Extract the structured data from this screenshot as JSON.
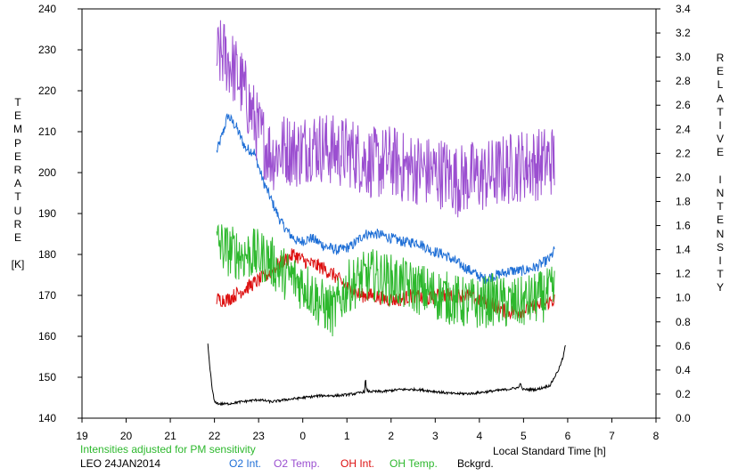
{
  "chart_data": {
    "type": "line",
    "title": "",
    "xlabel": "Local Standard Time [h]",
    "ylabel_left": [
      "T",
      "E",
      "M",
      "P",
      "E",
      "R",
      "A",
      "T",
      "U",
      "R",
      "E",
      "",
      "[K]"
    ],
    "ylabel_right": [
      "R",
      "E",
      "L",
      "A",
      "T",
      "I",
      "V",
      "E",
      "",
      "I",
      "N",
      "T",
      "E",
      "N",
      "S",
      "I",
      "T",
      "Y"
    ],
    "x_ticks": [
      "19",
      "20",
      "21",
      "22",
      "23",
      "0",
      "1",
      "2",
      "3",
      "4",
      "5",
      "6",
      "7",
      "8"
    ],
    "xlim": [
      19,
      32
    ],
    "y_left_ticks": [
      "140",
      "150",
      "160",
      "170",
      "180",
      "190",
      "200",
      "210",
      "220",
      "230",
      "240"
    ],
    "ylim_left": [
      140,
      240
    ],
    "y_right_ticks": [
      "0.0",
      "0.2",
      "0.4",
      "0.6",
      "0.8",
      "1.0",
      "1.2",
      "1.4",
      "1.6",
      "1.8",
      "2.0",
      "2.2",
      "2.4",
      "2.6",
      "2.8",
      "3.0",
      "3.2",
      "3.4"
    ],
    "ylim_right": [
      0,
      3.4
    ],
    "note": "Intensities adjusted for PM sensitivity",
    "station": "LEO 24JAN2014",
    "series": [
      {
        "name": "O2 Int.",
        "color": "#1f6fd6",
        "axis": "left",
        "noise": 1.3,
        "x": [
          22.05,
          22.2,
          22.3,
          22.5,
          22.7,
          22.9,
          23.1,
          23.3,
          23.5,
          23.7,
          23.9,
          24.2,
          24.5,
          24.8,
          25.1,
          25.4,
          25.7,
          26.0,
          26.3,
          26.6,
          26.9,
          27.2,
          27.5,
          27.8,
          28.1,
          28.4,
          28.7,
          29.0,
          29.3,
          29.6,
          29.7
        ],
        "y": [
          205,
          210,
          214,
          211,
          206,
          205,
          198,
          193,
          188,
          185,
          183,
          184,
          182,
          181,
          182,
          185,
          185,
          184,
          183,
          183,
          181,
          180,
          178,
          176,
          174,
          175,
          176,
          176,
          177,
          179,
          181
        ]
      },
      {
        "name": "O2 Temp.",
        "color": "#9b4fd0",
        "axis": "left",
        "noise": 9,
        "x": [
          22.05,
          22.2,
          22.4,
          22.6,
          22.8,
          23.0,
          23.3,
          23.6,
          23.9,
          24.2,
          24.5,
          24.8,
          25.1,
          25.4,
          25.7,
          26.0,
          26.3,
          26.6,
          26.9,
          27.2,
          27.5,
          27.8,
          28.1,
          28.4,
          28.7,
          29.0,
          29.3,
          29.6,
          29.7
        ],
        "y": [
          228,
          229,
          226,
          222,
          216,
          210,
          204,
          206,
          205,
          207,
          206,
          205,
          205,
          203,
          202,
          203,
          201,
          201,
          200,
          200,
          198,
          199,
          199,
          200,
          201,
          202,
          202,
          203,
          203
        ]
      },
      {
        "name": "OH Int.",
        "color": "#dd1010",
        "axis": "left",
        "noise": 1.8,
        "x": [
          22.05,
          22.3,
          22.6,
          22.9,
          23.2,
          23.5,
          23.8,
          24.1,
          24.4,
          24.7,
          25.0,
          25.3,
          25.6,
          25.9,
          26.2,
          26.5,
          26.8,
          27.1,
          27.4,
          27.7,
          28.0,
          28.3,
          28.6,
          28.9,
          29.2,
          29.5,
          29.7
        ],
        "y": [
          169,
          169,
          171,
          173,
          175,
          178,
          180,
          178,
          177,
          175,
          172,
          170,
          170,
          169,
          169,
          170,
          169,
          170,
          170,
          170,
          169,
          168,
          166,
          166,
          167,
          168,
          169
        ]
      },
      {
        "name": "OH Temp.",
        "color": "#2db82d",
        "axis": "left",
        "noise": 6.5,
        "x": [
          22.05,
          22.3,
          22.6,
          22.9,
          23.2,
          23.5,
          23.8,
          24.1,
          24.4,
          24.7,
          25.0,
          25.3,
          25.6,
          25.9,
          26.2,
          26.5,
          26.8,
          27.1,
          27.4,
          27.7,
          28.0,
          28.3,
          28.6,
          28.9,
          29.2,
          29.5,
          29.7
        ],
        "y": [
          183,
          181,
          180,
          180,
          179,
          176,
          174,
          172,
          168,
          166,
          172,
          174,
          175,
          174,
          173,
          172,
          171,
          170,
          169,
          168,
          168,
          169,
          168,
          168,
          169,
          170,
          171
        ]
      },
      {
        "name": "Bckgrd.",
        "color": "#000000",
        "axis": "left",
        "noise": 0.3,
        "x": [
          21.85,
          21.9,
          21.95,
          22.0,
          22.1,
          22.3,
          22.6,
          23.0,
          23.3,
          23.6,
          24.0,
          24.4,
          24.8,
          25.2,
          25.4,
          25.42,
          25.44,
          25.5,
          25.8,
          26.2,
          26.6,
          27.0,
          27.4,
          27.8,
          28.2,
          28.6,
          28.9,
          28.92,
          28.95,
          29.0,
          29.3,
          29.6,
          29.8,
          29.9,
          29.95
        ],
        "y": [
          158,
          152,
          147,
          144,
          143.5,
          143.5,
          144,
          144.5,
          144,
          144.5,
          145,
          145.5,
          145.5,
          146,
          146.5,
          150,
          147,
          146.5,
          146.5,
          147,
          147,
          146.5,
          146,
          146,
          146.5,
          147,
          147.5,
          149,
          147.5,
          147,
          147,
          148,
          152,
          155,
          158
        ]
      }
    ]
  }
}
